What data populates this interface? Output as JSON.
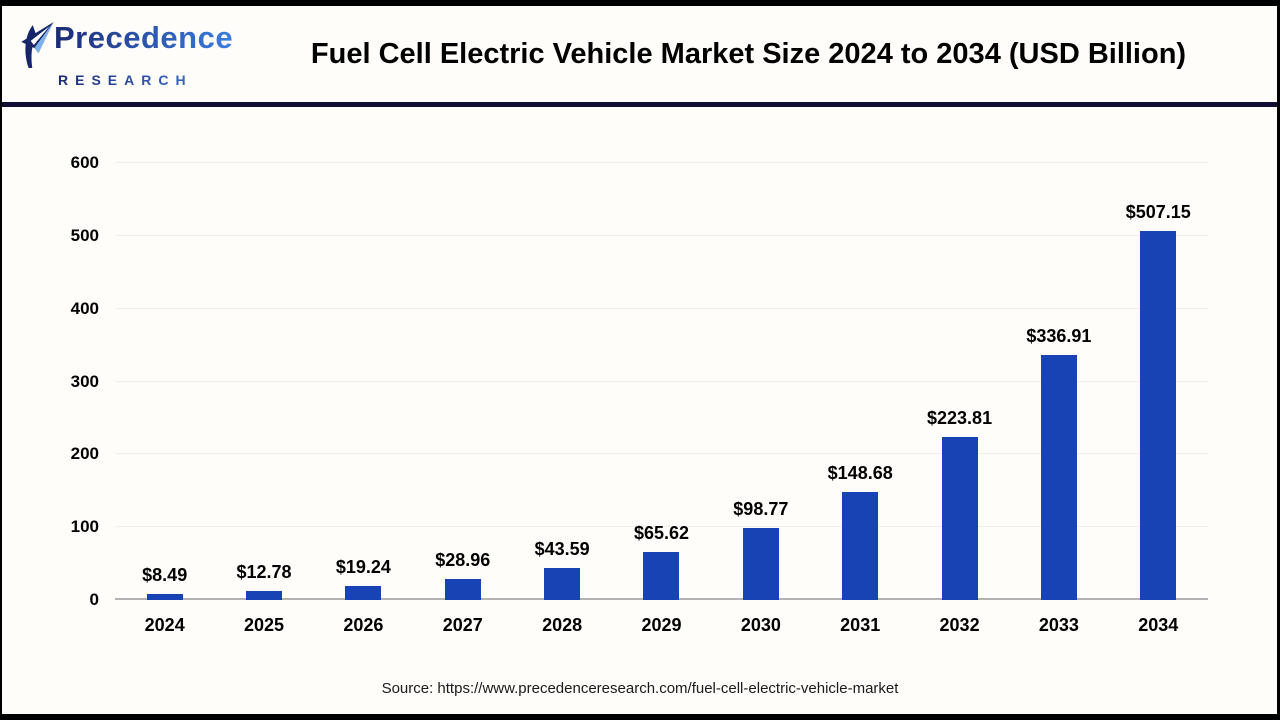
{
  "header": {
    "logo": {
      "name": "Precedence",
      "subtitle": "RESEARCH"
    },
    "title": "Fuel Cell Electric Vehicle Market Size 2024 to 2034 (USD Billion)"
  },
  "chart_data": {
    "type": "bar",
    "title": "Fuel Cell Electric Vehicle Market Size 2024 to 2034 (USD Billion)",
    "categories": [
      "2024",
      "2025",
      "2026",
      "2027",
      "2028",
      "2029",
      "2030",
      "2031",
      "2032",
      "2033",
      "2034"
    ],
    "values": [
      8.49,
      12.78,
      19.24,
      28.96,
      43.59,
      65.62,
      98.77,
      148.68,
      223.81,
      336.91,
      507.15
    ],
    "value_labels": [
      "$8.49",
      "$12.78",
      "$19.24",
      "$28.96",
      "$43.59",
      "$65.62",
      "$98.77",
      "$148.68",
      "$223.81",
      "$336.91",
      "$507.15"
    ],
    "xlabel": "",
    "ylabel": "",
    "ylim": [
      0,
      600
    ],
    "yticks": [
      0,
      100,
      200,
      300,
      400,
      500,
      600
    ],
    "grid": true,
    "legend": null,
    "bar_color": "#1843b5"
  },
  "colors": {
    "bar": "#1843b5",
    "separator": "#0e0e35",
    "brand_navy": "#1c2a74",
    "brand_blue": "#3b7de0",
    "baseline": "#b3b3b3",
    "gridline": "#efefef"
  },
  "footer": {
    "source": "Source: https://www.precedenceresearch.com/fuel-cell-electric-vehicle-market"
  }
}
